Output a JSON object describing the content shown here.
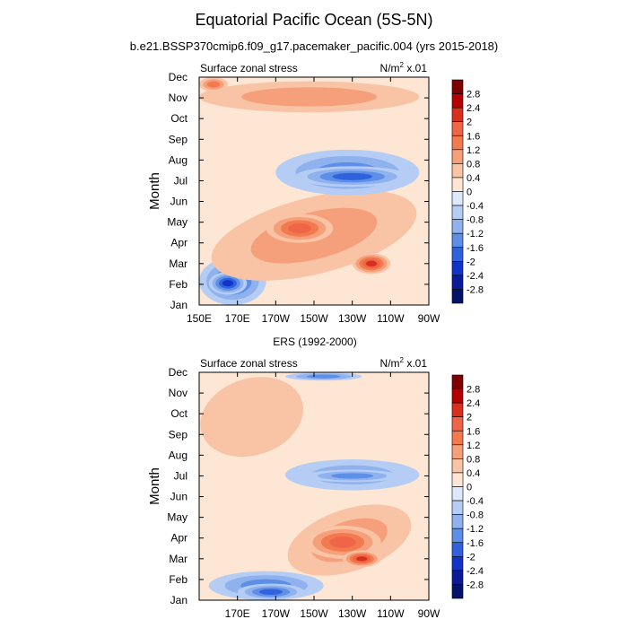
{
  "title": "Equatorial Pacific Ocean (5S-5N)",
  "subtitle": "b.e21.BSSP370cmip6.f09_g17.pacemaker_pacific.004 (yrs 2015-2018)",
  "colorbar": {
    "levels": [
      "2.8",
      "2.4",
      "2",
      "1.6",
      "1.2",
      "0.8",
      "0.4",
      "0",
      "-0.4",
      "-0.8",
      "-1.2",
      "-1.6",
      "-2",
      "-2.4",
      "-2.8"
    ],
    "colors": [
      "#7f0000",
      "#b30000",
      "#d7301f",
      "#ef6548",
      "#f27a4f",
      "#f6a07b",
      "#f9c3a6",
      "#fde6d4",
      "#dde9fa",
      "#b5cdf4",
      "#8fb2ee",
      "#5d8fe6",
      "#2f62dc",
      "#1234c6",
      "#0a1a98",
      "#04126a"
    ]
  },
  "chart_data": [
    {
      "type": "heatmap",
      "title": "",
      "left_label": "Surface zonal stress",
      "right_label": "N/m",
      "right_label_sup": "2",
      "right_label_tail": " x.01",
      "ylabel": "Month",
      "y_ticks": [
        "Jan",
        "Feb",
        "Mar",
        "Apr",
        "May",
        "Jun",
        "Jul",
        "Aug",
        "Sep",
        "Oct",
        "Nov",
        "Dec"
      ],
      "x_ticks": [
        "150E",
        "170E",
        "170W",
        "150W",
        "130W",
        "110W",
        "90W"
      ],
      "x_range": [
        150,
        270
      ],
      "y_range": [
        1,
        12
      ],
      "features": [
        {
          "name": "feb-mar-west-negative",
          "value": -1.6,
          "lon": [
            150,
            185
          ],
          "month": [
            1,
            3.3
          ]
        },
        {
          "name": "feb-west-core",
          "value": -2.0,
          "lon": [
            155,
            175
          ],
          "month": [
            1.5,
            2.6
          ]
        },
        {
          "name": "spring-positive-band",
          "value": 0.8,
          "lon": [
            155,
            265
          ],
          "month": [
            2.5,
            6.2
          ]
        },
        {
          "name": "may-positive-core",
          "value": 1.6,
          "lon": [
            185,
            220
          ],
          "month": [
            4,
            5.4
          ]
        },
        {
          "name": "mar-east-positive-core",
          "value": 2.0,
          "lon": [
            230,
            250
          ],
          "month": [
            2.5,
            3.5
          ]
        },
        {
          "name": "jul-aug-east-negative",
          "value": -1.2,
          "lon": [
            190,
            265
          ],
          "month": [
            6.3,
            8.5
          ]
        },
        {
          "name": "jul-negative-core",
          "value": -1.6,
          "lon": [
            200,
            260
          ],
          "month": [
            6.7,
            7.7
          ]
        },
        {
          "name": "nov-positive-band",
          "value": 0.8,
          "lon": [
            150,
            265
          ],
          "month": [
            10.3,
            11.8
          ]
        },
        {
          "name": "dec-west-positive",
          "value": 1.2,
          "lon": [
            150,
            165
          ],
          "month": [
            11.3,
            12
          ]
        }
      ]
    },
    {
      "type": "heatmap",
      "title": "ERS (1992-2000)",
      "left_label": "Surface zonal stress",
      "right_label": "N/m",
      "right_label_sup": "2",
      "right_label_tail": " x.01",
      "ylabel": "Month",
      "y_ticks": [
        "Jan",
        "Feb",
        "Mar",
        "Apr",
        "May",
        "Jun",
        "Jul",
        "Aug",
        "Sep",
        "Oct",
        "Nov",
        "Dec"
      ],
      "x_ticks": [
        "170E",
        "170W",
        "150W",
        "130W",
        "110W",
        "90W"
      ],
      "x_range": [
        150,
        270
      ],
      "y_range": [
        1,
        12
      ],
      "features": [
        {
          "name": "jan-feb-west-negative",
          "value": -1.2,
          "lon": [
            155,
            215
          ],
          "month": [
            1,
            2.4
          ]
        },
        {
          "name": "jan-core-negative",
          "value": -1.6,
          "lon": [
            170,
            205
          ],
          "month": [
            1,
            1.8
          ]
        },
        {
          "name": "spring-positive-band",
          "value": 0.8,
          "lon": [
            195,
            262
          ],
          "month": [
            2.4,
            5.4
          ]
        },
        {
          "name": "apr-positive-core",
          "value": 1.6,
          "lon": [
            205,
            245
          ],
          "month": [
            3,
            4.6
          ]
        },
        {
          "name": "mar-core",
          "value": 2.0,
          "lon": [
            225,
            245
          ],
          "month": [
            2.6,
            3.4
          ]
        },
        {
          "name": "jul-east-negative",
          "value": -0.8,
          "lon": [
            195,
            265
          ],
          "month": [
            6.3,
            7.8
          ]
        },
        {
          "name": "jul-negative-core",
          "value": -1.2,
          "lon": [
            205,
            255
          ],
          "month": [
            6.7,
            7.3
          ]
        },
        {
          "name": "oct-nov-west-positive",
          "value": 0.4,
          "lon": [
            150,
            205
          ],
          "month": [
            8,
            11.7
          ]
        },
        {
          "name": "dec-central-negative",
          "value": -1.2,
          "lon": [
            195,
            235
          ],
          "month": [
            11.6,
            12
          ]
        }
      ]
    }
  ]
}
